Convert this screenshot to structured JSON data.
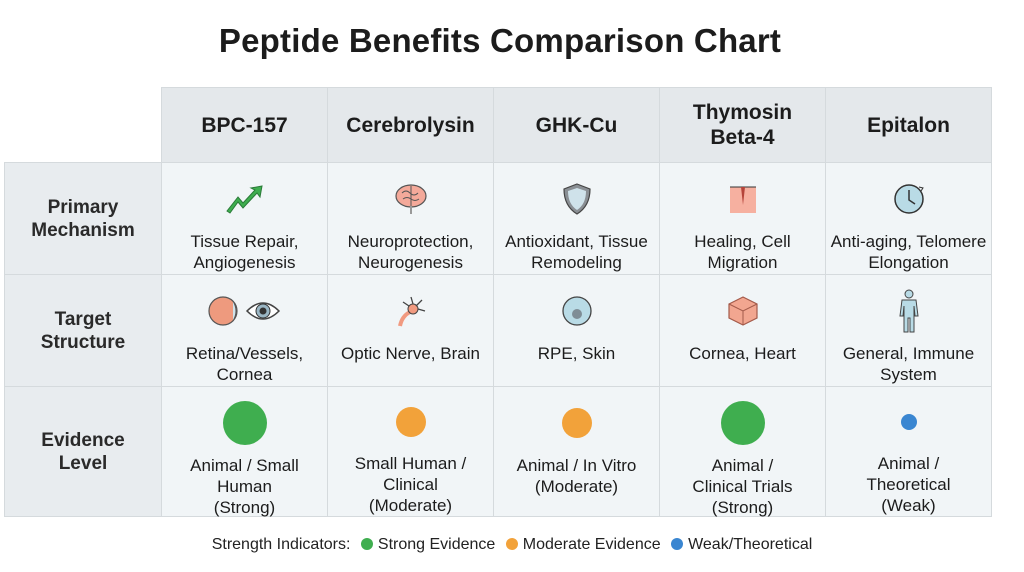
{
  "title": "Peptide Benefits Comparison Chart",
  "columns": [
    "BPC-157",
    "Cerebrolysin",
    "GHK-Cu",
    "Thymosin Beta-4",
    "Epitalon"
  ],
  "rows": [
    {
      "label": "Primary Mechanism",
      "cells": [
        {
          "icon": "trending-up-arrow-icon",
          "text": "Tissue Repair, Angiogenesis"
        },
        {
          "icon": "brain-icon",
          "text": "Neuroprotection, Neurogenesis"
        },
        {
          "icon": "shield-icon",
          "text": "Antioxidant, Tissue Remodeling"
        },
        {
          "icon": "skin-wound-icon",
          "text": "Healing, Cell Migration"
        },
        {
          "icon": "clock-icon",
          "text": "Anti-aging, Telomere Elongation"
        }
      ]
    },
    {
      "label": "Target Structure",
      "cells": [
        {
          "icon": "retina-eye-icon",
          "text": "Retina/Vessels, Cornea"
        },
        {
          "icon": "neuron-icon",
          "text": "Optic Nerve, Brain"
        },
        {
          "icon": "cell-icon",
          "text": "RPE, Skin"
        },
        {
          "icon": "tissue-block-icon",
          "text": "Cornea, Heart"
        },
        {
          "icon": "person-icon",
          "text": "General, Immune System"
        }
      ]
    },
    {
      "label": "Evidence Level",
      "cells": [
        {
          "level": "strong",
          "text": "Animal / Small Human (Strong)"
        },
        {
          "level": "moderate",
          "text": "Small Human / Clinical (Moderate)"
        },
        {
          "level": "moderate",
          "text": "Animal / In Vitro (Moderate)"
        },
        {
          "level": "strong",
          "text": "Animal / Clinical Trials (Strong)"
        },
        {
          "level": "weak",
          "text": "Animal / Theoretical (Weak)"
        }
      ]
    }
  ],
  "legend": {
    "label": "Strength Indicators:",
    "items": [
      {
        "level": "strong",
        "text": "Strong Evidence",
        "color": "#3fae4f"
      },
      {
        "level": "moderate",
        "text": "Moderate Evidence",
        "color": "#f2a23a"
      },
      {
        "level": "weak",
        "text": "Weak/Theoretical",
        "color": "#3a86d1"
      }
    ]
  }
}
